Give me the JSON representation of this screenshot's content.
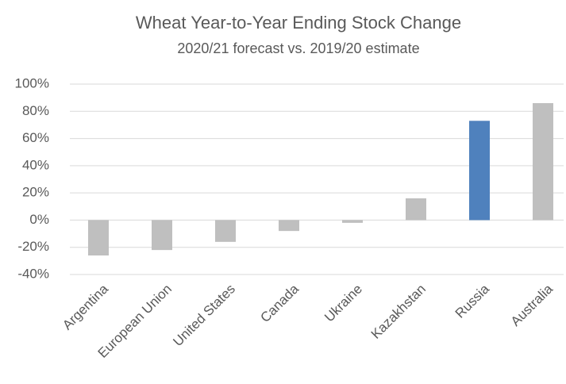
{
  "chart_data": {
    "type": "bar",
    "title": "Wheat Year-to-Year Ending Stock Change",
    "subtitle": "2020/21 forecast vs. 2019/20 estimate",
    "categories": [
      "Argentina",
      "European Union",
      "United States",
      "Canada",
      "Ukraine",
      "Kazakhstan",
      "Russia",
      "Australia"
    ],
    "values": [
      -26,
      -22,
      -16,
      -8,
      -2,
      16,
      73,
      86
    ],
    "colors": [
      "#bfbfbf",
      "#bfbfbf",
      "#bfbfbf",
      "#bfbfbf",
      "#bfbfbf",
      "#bfbfbf",
      "#4f81bd",
      "#bfbfbf"
    ],
    "ylim": [
      -40,
      100
    ],
    "yticks": [
      {
        "value": -40,
        "label": "-40%"
      },
      {
        "value": -20,
        "label": "-20%"
      },
      {
        "value": 0,
        "label": "0%"
      },
      {
        "value": 20,
        "label": "20%"
      },
      {
        "value": 40,
        "label": "40%"
      },
      {
        "value": 60,
        "label": "60%"
      },
      {
        "value": 80,
        "label": "80%"
      },
      {
        "value": 100,
        "label": "100%"
      }
    ],
    "grid": true
  }
}
